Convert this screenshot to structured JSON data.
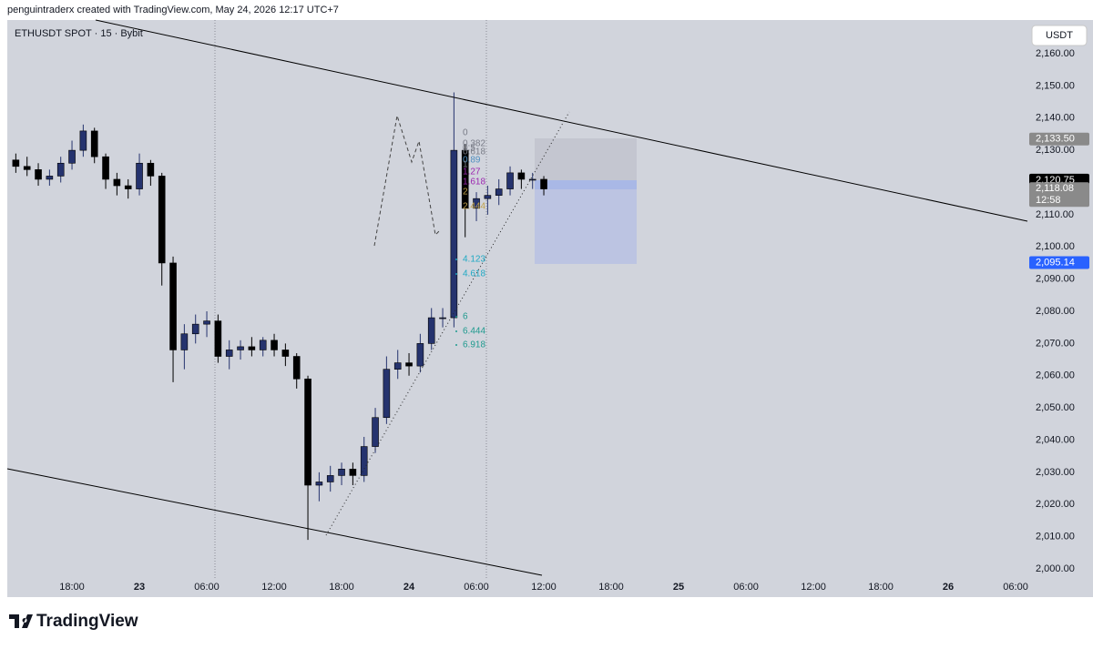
{
  "header": {
    "attribution": "penguintraderx created with TradingView.com, May 24, 2026 12:17 UTC+7"
  },
  "chart_data": {
    "type": "candlestick",
    "title": "ETHUSDT SPOT · 15 · Bybit",
    "currency": "USDT",
    "x": [
      13,
      14,
      15,
      16,
      17,
      18,
      19,
      20,
      21,
      22,
      23,
      24,
      25,
      26,
      27,
      28,
      29,
      30,
      31,
      32,
      33,
      34,
      35,
      36,
      37,
      38,
      39,
      40,
      41,
      42,
      43,
      44,
      45,
      46,
      47,
      48,
      49,
      50,
      51,
      52,
      53,
      54,
      55,
      56,
      57,
      58,
      59,
      60
    ],
    "open": [
      2127,
      2125,
      2124,
      2121,
      2122,
      2126,
      2130,
      2136,
      2128,
      2121,
      2119,
      2118,
      2126,
      2122,
      2095,
      2068,
      2073,
      2076,
      2077,
      2066,
      2068,
      2069,
      2068,
      2071,
      2068,
      2066,
      2059,
      2026,
      2027,
      2029,
      2031,
      2029,
      2038,
      2047,
      2062,
      2064,
      2063,
      2070,
      2078,
      2078,
      2130,
      2112,
      2115,
      2116,
      2118,
      2123,
      2121,
      2121
    ],
    "high": [
      2129,
      2128,
      2126,
      2124,
      2128,
      2133,
      2138,
      2137,
      2129,
      2123,
      2121,
      2129,
      2127,
      2123,
      2097,
      2076,
      2079,
      2080,
      2079,
      2071,
      2071,
      2072,
      2072,
      2073,
      2070,
      2067,
      2060,
      2030,
      2032,
      2033,
      2033,
      2041,
      2050,
      2066,
      2068,
      2067,
      2073,
      2081,
      2081,
      2148,
      2132,
      2117,
      2119,
      2121,
      2125,
      2124,
      2123,
      2122
    ],
    "low": [
      2123,
      2122,
      2119,
      2119,
      2120,
      2124,
      2128,
      2126,
      2118,
      2116,
      2115,
      2116,
      2119,
      2088,
      2058,
      2062,
      2070,
      2072,
      2064,
      2062,
      2065,
      2066,
      2066,
      2066,
      2063,
      2056,
      2009,
      2021,
      2024,
      2026,
      2026,
      2027,
      2036,
      2045,
      2059,
      2060,
      2061,
      2068,
      2075,
      2075,
      2103,
      2108,
      2110,
      2113,
      2116,
      2118,
      2118,
      2116
    ],
    "close": [
      2125,
      2124,
      2121,
      2122,
      2126,
      2130,
      2136,
      2128,
      2121,
      2119,
      2118,
      2126,
      2122,
      2095,
      2068,
      2073,
      2076,
      2077,
      2066,
      2068,
      2069,
      2068,
      2071,
      2068,
      2066,
      2059,
      2026,
      2027,
      2029,
      2031,
      2029,
      2038,
      2047,
      2062,
      2064,
      2063,
      2070,
      2078,
      2078,
      2130,
      2112,
      2115,
      2116,
      2118,
      2123,
      2121,
      2121,
      2118
    ],
    "up_color": "#25336e",
    "down_color": "#000000",
    "xlim": [
      12.24,
      103.05
    ],
    "xticks": [
      {
        "value": 18,
        "label": "18:00"
      },
      {
        "value": 24,
        "label": "23"
      },
      {
        "value": 30,
        "label": "06:00"
      },
      {
        "value": 36,
        "label": "12:00"
      },
      {
        "value": 42,
        "label": "18:00"
      },
      {
        "value": 48,
        "label": "24"
      },
      {
        "value": 54,
        "label": "06:00"
      },
      {
        "value": 60,
        "label": "12:00"
      },
      {
        "value": 66,
        "label": "18:00"
      },
      {
        "value": 72,
        "label": "25"
      },
      {
        "value": 78,
        "label": "06:00"
      },
      {
        "value": 84,
        "label": "12:00"
      },
      {
        "value": 90,
        "label": "18:00"
      },
      {
        "value": 96,
        "label": "26"
      },
      {
        "value": 102,
        "label": "06:00"
      }
    ],
    "ylim": [
      1997.17,
      2170.46
    ],
    "yticks": [
      {
        "value": 2000,
        "label": "2,000.00"
      },
      {
        "value": 2010,
        "label": "2,010.00"
      },
      {
        "value": 2020,
        "label": "2,020.00"
      },
      {
        "value": 2030,
        "label": "2,030.00"
      },
      {
        "value": 2040,
        "label": "2,040.00"
      },
      {
        "value": 2050,
        "label": "2,050.00"
      },
      {
        "value": 2060,
        "label": "2,060.00"
      },
      {
        "value": 2070,
        "label": "2,070.00"
      },
      {
        "value": 2080,
        "label": "2,080.00"
      },
      {
        "value": 2090,
        "label": "2,090.00"
      },
      {
        "value": 2100,
        "label": "2,100.00"
      },
      {
        "value": 2110,
        "label": "2,110.00"
      },
      {
        "value": 2120,
        "label": "2,120.00"
      },
      {
        "value": 2130,
        "label": "2,130.00"
      },
      {
        "value": 2140,
        "label": "2,140.00"
      },
      {
        "value": 2150,
        "label": "2,150.00"
      },
      {
        "value": 2160,
        "label": "2,160.00"
      }
    ],
    "price_tags": [
      {
        "value": 2133.5,
        "label": "2,133.50",
        "color": "#8a8a8a"
      },
      {
        "value": 2120.75,
        "label": "2,120.75",
        "color": "#000000"
      },
      {
        "value": 2118.08,
        "label": "2,118.08",
        "color": "#8a8a8a"
      },
      {
        "value": 2095.14,
        "label": "2,095.14",
        "color": "#2962ff"
      }
    ],
    "countdown": "12:58",
    "fib_levels": [
      {
        "text": "0",
        "color": "#787b86"
      },
      {
        "text": "0.382",
        "color": "#787b86"
      },
      {
        "text": "0.5",
        "color": "#787b86"
      },
      {
        "text": "0.618",
        "color": "#787b86"
      },
      {
        "text": "0.89",
        "color": "#4f8fbf"
      },
      {
        "text": "1",
        "color": "#787b86"
      },
      {
        "text": "1.27",
        "color": "#9c27b0"
      },
      {
        "text": "1.618",
        "color": "#9c27b0"
      },
      {
        "text": "2",
        "color": "#c0a04a"
      },
      {
        "text": "2.444",
        "color": "#c0a04a"
      },
      {
        "text": "4.123",
        "color": "#1fa9c4"
      },
      {
        "text": "4.618",
        "color": "#1fa9c4"
      },
      {
        "text": "6",
        "color": "#1e9a8e"
      },
      {
        "text": "6.444",
        "color": "#1e9a8e"
      },
      {
        "text": "6.918",
        "color": "#1e9a8e"
      }
    ]
  },
  "footer": {
    "brand": "TradingView"
  }
}
